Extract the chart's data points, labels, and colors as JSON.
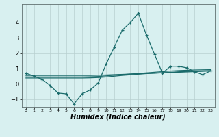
{
  "x": [
    0,
    1,
    2,
    3,
    4,
    5,
    6,
    7,
    8,
    9,
    10,
    11,
    12,
    13,
    14,
    15,
    16,
    17,
    18,
    19,
    20,
    21,
    22,
    23
  ],
  "y_main": [
    0.7,
    0.5,
    0.3,
    -0.1,
    -0.6,
    -0.65,
    -1.3,
    -0.65,
    -0.4,
    0.05,
    1.3,
    2.4,
    3.5,
    4.0,
    4.6,
    3.2,
    1.95,
    0.7,
    1.15,
    1.15,
    1.05,
    0.8,
    0.6,
    0.85
  ],
  "y_trend1": [
    0.55,
    0.55,
    0.55,
    0.55,
    0.55,
    0.55,
    0.55,
    0.55,
    0.55,
    0.56,
    0.58,
    0.6,
    0.62,
    0.64,
    0.66,
    0.68,
    0.7,
    0.72,
    0.74,
    0.76,
    0.78,
    0.8,
    0.82,
    0.84
  ],
  "y_trend2": [
    0.45,
    0.45,
    0.45,
    0.45,
    0.45,
    0.45,
    0.45,
    0.45,
    0.46,
    0.48,
    0.52,
    0.56,
    0.6,
    0.64,
    0.68,
    0.72,
    0.76,
    0.8,
    0.84,
    0.87,
    0.89,
    0.91,
    0.92,
    0.93
  ],
  "y_trend3": [
    0.38,
    0.38,
    0.38,
    0.38,
    0.38,
    0.38,
    0.38,
    0.38,
    0.39,
    0.41,
    0.45,
    0.5,
    0.55,
    0.59,
    0.63,
    0.67,
    0.7,
    0.73,
    0.76,
    0.79,
    0.81,
    0.83,
    0.85,
    0.87
  ],
  "line_color": "#1a6b6b",
  "trend_color": "#1a6b6b",
  "bg_color": "#d8f0f0",
  "grid_color": "#b8d0d0",
  "xlabel": "Humidex (Indice chaleur)",
  "ylim": [
    -1.5,
    5.2
  ],
  "xlim": [
    -0.5,
    23.5
  ],
  "yticks": [
    -1,
    0,
    1,
    2,
    3,
    4
  ],
  "xtick_labels": [
    "0",
    "1",
    "2",
    "3",
    "4",
    "5",
    "6",
    "7",
    "8",
    "9",
    "10",
    "11",
    "12",
    "13",
    "14",
    "15",
    "16",
    "17",
    "18",
    "19",
    "20",
    "21",
    "22",
    "23"
  ]
}
